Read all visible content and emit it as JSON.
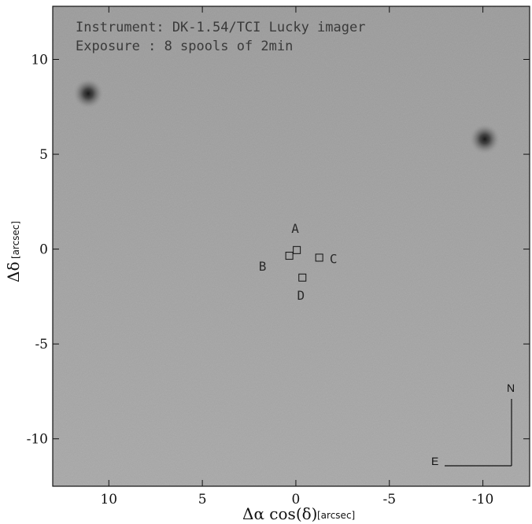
{
  "info": {
    "instrument": "Instrument:  DK-1.54/TCI Lucky imager",
    "exposure": "Exposure  :  8 spools of 2min"
  },
  "axes": {
    "x_symbol": "Δα cos(δ)",
    "x_unit": "[arcsec]",
    "y_symbol": "Δδ",
    "y_unit": "[arcsec]",
    "x_range": [
      13,
      -12.5
    ],
    "y_range": [
      -12.5,
      12.8
    ],
    "x_ticks": [
      {
        "value": 10,
        "label": "10"
      },
      {
        "value": 5,
        "label": "5"
      },
      {
        "value": 0,
        "label": "0"
      },
      {
        "value": -5,
        "label": "-5"
      },
      {
        "value": -10,
        "label": "-10"
      }
    ],
    "y_ticks": [
      {
        "value": 10,
        "label": "10"
      },
      {
        "value": 5,
        "label": "5"
      },
      {
        "value": 0,
        "label": "0"
      },
      {
        "value": -5,
        "label": "-5"
      },
      {
        "value": -10,
        "label": "-10"
      }
    ]
  },
  "colors": {
    "background": "#a6a6a6",
    "source": "#1e1e1e",
    "frame": "#111111"
  },
  "components": [
    {
      "label": "A",
      "x": -0.05,
      "y": -0.05
    },
    {
      "label": "B",
      "x": 0.35,
      "y": -0.35
    },
    {
      "label": "C",
      "x": -1.25,
      "y": -0.45
    },
    {
      "label": "D",
      "x": -0.35,
      "y": -1.5
    }
  ],
  "sources": [
    {
      "x": 11.1,
      "y": 8.2
    },
    {
      "x": -10.1,
      "y": 5.8
    }
  ],
  "compass": {
    "north": "N",
    "east": "E"
  }
}
